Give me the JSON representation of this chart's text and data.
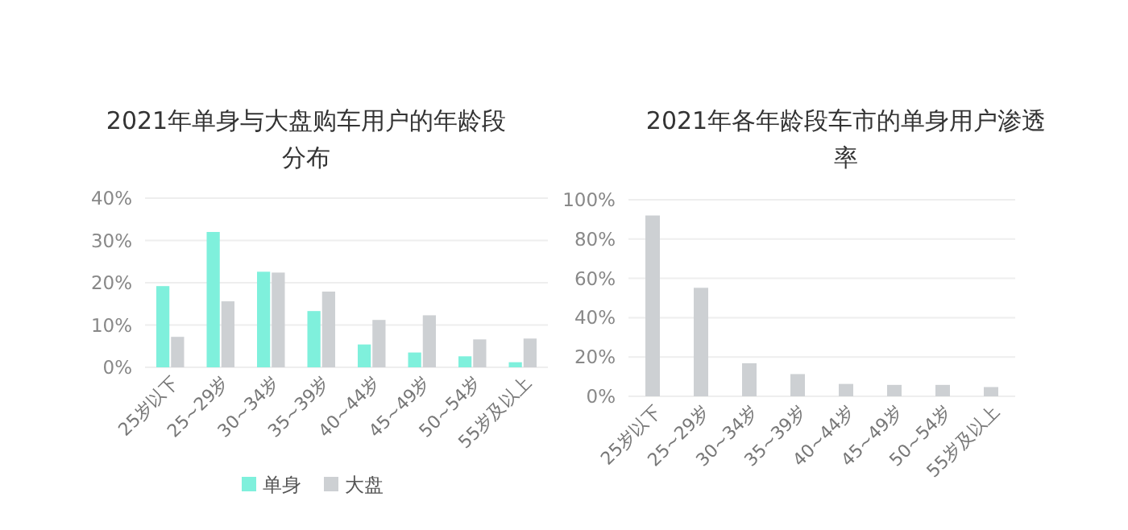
{
  "chart_data": [
    {
      "type": "bar",
      "title": "2021年单身与大盘购车用户的年龄段分布",
      "categories": [
        "25岁以下",
        "25~29岁",
        "30~34岁",
        "35~39岁",
        "40~44岁",
        "45~49岁",
        "50~54岁",
        "55岁及以上"
      ],
      "series": [
        {
          "name": "单身",
          "color": "#7ff0dc",
          "values": [
            19.2,
            32,
            22.6,
            13.3,
            5.4,
            3.5,
            2.6,
            1.2
          ]
        },
        {
          "name": "大盘",
          "color": "#cdd0d3",
          "values": [
            7.2,
            15.6,
            22.4,
            17.9,
            11.2,
            12.3,
            6.6,
            6.8
          ]
        }
      ],
      "ylim": [
        0,
        40
      ],
      "yticks": [
        {
          "value": 0,
          "label": "0%"
        },
        {
          "value": 10,
          "label": "10%"
        },
        {
          "value": 20,
          "label": "20%"
        },
        {
          "value": 30,
          "label": "30%"
        },
        {
          "value": 40,
          "label": "40%"
        }
      ],
      "grid": "y",
      "legend": "bottom"
    },
    {
      "type": "bar",
      "title": "2021年各年龄段车市的单身用户渗透率",
      "categories": [
        "25岁以下",
        "25~29岁",
        "30~34岁",
        "35~39岁",
        "40~44岁",
        "45~49岁",
        "50~54岁",
        "55岁及以上"
      ],
      "color": "#cdd0d3",
      "values": [
        92,
        55.2,
        16.8,
        11.3,
        6.3,
        5.8,
        5.8,
        4.7
      ],
      "ylim": [
        0,
        100
      ],
      "yticks": [
        {
          "value": 0,
          "label": "0%"
        },
        {
          "value": 20,
          "label": "20%"
        },
        {
          "value": 40,
          "label": "40%"
        },
        {
          "value": 60,
          "label": "60%"
        },
        {
          "value": 80,
          "label": "80%"
        },
        {
          "value": 100,
          "label": "100%"
        }
      ],
      "grid": "y"
    }
  ]
}
